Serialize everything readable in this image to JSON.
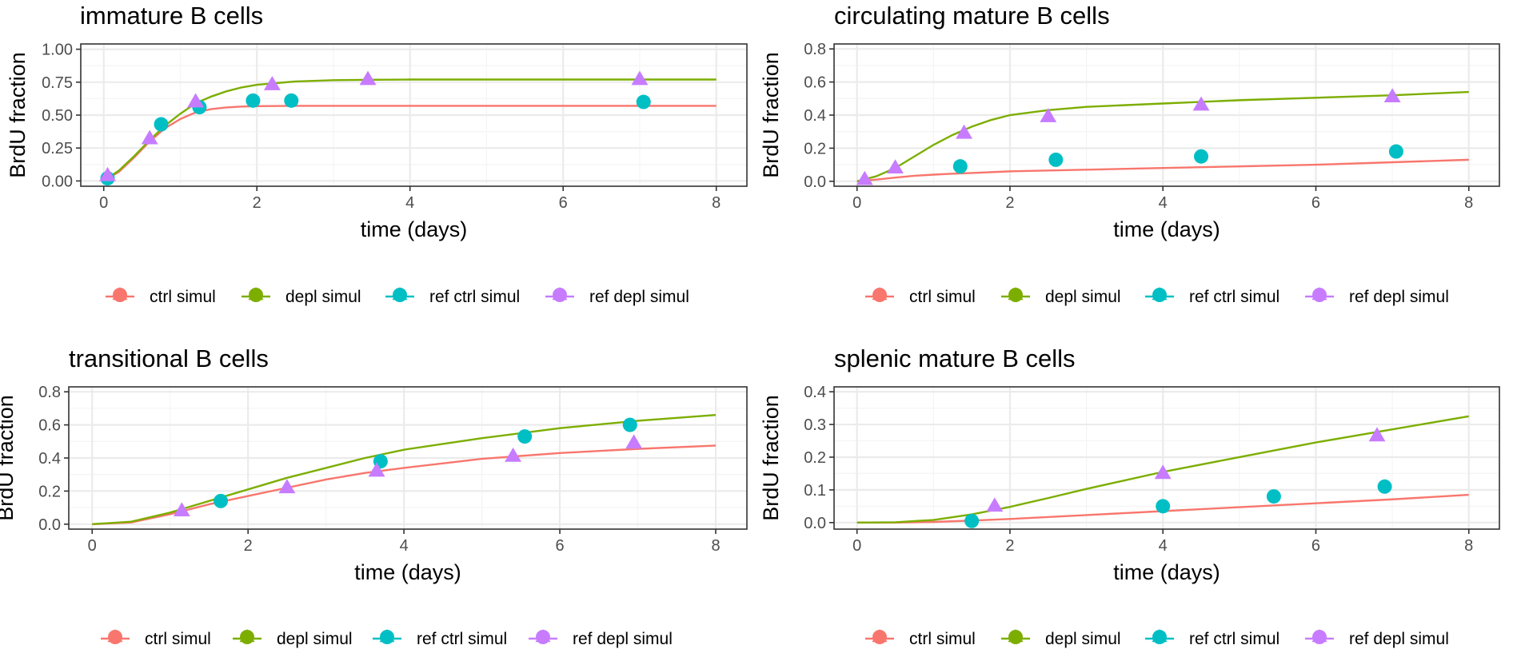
{
  "colors": {
    "ctrl_simul": "#F8766D",
    "depl_simul": "#7CAE00",
    "ref_ctrl_simul": "#00BFC4",
    "ref_depl_simul": "#C77CFF",
    "panel_border": "#333333",
    "grid_major": "#ebebeb",
    "grid_minor": "#f5f5f5",
    "tick_label": "#4d4d4d"
  },
  "chart_data": [
    {
      "type": "line",
      "title": "immature B cells",
      "xlabel": "time (days)",
      "ylabel": "BrdU fraction",
      "xlim": [
        -0.3,
        8.4
      ],
      "ylim": [
        -0.04,
        1.04
      ],
      "xticks": [
        0,
        2,
        4,
        6,
        8
      ],
      "xtick_labels": [
        "0",
        "2",
        "4",
        "6",
        "8"
      ],
      "yticks": [
        0,
        0.25,
        0.5,
        0.75,
        1.0
      ],
      "ytick_labels": [
        "0.00",
        "0.25",
        "0.50",
        "0.75",
        "1.00"
      ],
      "grid": true,
      "legend_position": "bottom",
      "series": [
        {
          "name": "ctrl simul",
          "kind": "line",
          "x": [
            0,
            0.2,
            0.4,
            0.6,
            0.8,
            1.0,
            1.2,
            1.4,
            1.6,
            1.8,
            2.0,
            2.5,
            3,
            4,
            5,
            6,
            7,
            8
          ],
          "y": [
            0,
            0.07,
            0.18,
            0.3,
            0.4,
            0.47,
            0.52,
            0.545,
            0.558,
            0.565,
            0.568,
            0.57,
            0.57,
            0.57,
            0.57,
            0.57,
            0.57,
            0.57
          ]
        },
        {
          "name": "depl simul",
          "kind": "line",
          "x": [
            0,
            0.2,
            0.4,
            0.6,
            0.8,
            1.0,
            1.2,
            1.4,
            1.6,
            1.8,
            2.0,
            2.5,
            3,
            3.5,
            4,
            5,
            6,
            7,
            8
          ],
          "y": [
            0,
            0.08,
            0.19,
            0.31,
            0.42,
            0.51,
            0.59,
            0.64,
            0.68,
            0.71,
            0.73,
            0.755,
            0.765,
            0.768,
            0.77,
            0.77,
            0.77,
            0.77,
            0.77
          ]
        },
        {
          "name": "ref ctrl simul",
          "kind": "points",
          "marker": "circle",
          "x": [
            0.05,
            0.75,
            1.25,
            1.95,
            2.45,
            7.05
          ],
          "y": [
            0.02,
            0.43,
            0.56,
            0.61,
            0.61,
            0.6
          ]
        },
        {
          "name": "ref depl simul",
          "kind": "points",
          "marker": "triangle",
          "x": [
            0.05,
            0.6,
            1.2,
            2.2,
            3.45,
            7.0
          ],
          "y": [
            0.04,
            0.32,
            0.6,
            0.73,
            0.77,
            0.77
          ]
        }
      ]
    },
    {
      "type": "line",
      "title": "circulating mature B cells",
      "xlabel": "time (days)",
      "ylabel": "BrdU fraction",
      "xlim": [
        -0.3,
        8.4
      ],
      "ylim": [
        -0.03,
        0.83
      ],
      "xticks": [
        0,
        2,
        4,
        6,
        8
      ],
      "xtick_labels": [
        "0",
        "2",
        "4",
        "6",
        "8"
      ],
      "yticks": [
        0,
        0.2,
        0.4,
        0.6,
        0.8
      ],
      "ytick_labels": [
        "0.0",
        "0.2",
        "0.4",
        "0.6",
        "0.8"
      ],
      "grid": true,
      "legend_position": "bottom",
      "series": [
        {
          "name": "ctrl simul",
          "kind": "line",
          "x": [
            0,
            0.25,
            0.5,
            0.75,
            1.0,
            1.25,
            1.5,
            2,
            3,
            4,
            5,
            6,
            7,
            8
          ],
          "y": [
            0,
            0.01,
            0.022,
            0.033,
            0.04,
            0.046,
            0.05,
            0.06,
            0.07,
            0.08,
            0.09,
            0.1,
            0.115,
            0.13
          ]
        },
        {
          "name": "depl simul",
          "kind": "line",
          "x": [
            0,
            0.25,
            0.5,
            0.75,
            1.0,
            1.25,
            1.5,
            1.75,
            2.0,
            2.5,
            3,
            4,
            5,
            6,
            7,
            8
          ],
          "y": [
            0,
            0.03,
            0.08,
            0.15,
            0.22,
            0.28,
            0.33,
            0.37,
            0.4,
            0.43,
            0.45,
            0.47,
            0.49,
            0.505,
            0.52,
            0.54
          ]
        },
        {
          "name": "ref ctrl simul",
          "kind": "points",
          "marker": "circle",
          "x": [
            1.35,
            2.6,
            4.5,
            7.05
          ],
          "y": [
            0.09,
            0.13,
            0.15,
            0.18
          ]
        },
        {
          "name": "ref depl simul",
          "kind": "points",
          "marker": "triangle",
          "x": [
            0.1,
            0.5,
            1.4,
            2.5,
            4.5,
            7.0
          ],
          "y": [
            0.01,
            0.08,
            0.29,
            0.39,
            0.46,
            0.51
          ]
        }
      ]
    },
    {
      "type": "line",
      "title": "transitional B cells",
      "xlabel": "time (days)",
      "ylabel": "BrdU fraction",
      "xlim": [
        -0.3,
        8.4
      ],
      "ylim": [
        -0.03,
        0.83
      ],
      "xticks": [
        0,
        2,
        4,
        6,
        8
      ],
      "xtick_labels": [
        "0",
        "2",
        "4",
        "6",
        "8"
      ],
      "yticks": [
        0,
        0.2,
        0.4,
        0.6,
        0.8
      ],
      "ytick_labels": [
        "0.0",
        "0.2",
        "0.4",
        "0.6",
        "0.8"
      ],
      "grid": true,
      "legend_position": "bottom",
      "series": [
        {
          "name": "ctrl simul",
          "kind": "line",
          "x": [
            0,
            0.5,
            1,
            1.5,
            2,
            2.5,
            3,
            3.5,
            4,
            5,
            6,
            7,
            8
          ],
          "y": [
            0,
            0.01,
            0.06,
            0.12,
            0.17,
            0.22,
            0.27,
            0.31,
            0.34,
            0.395,
            0.43,
            0.455,
            0.475
          ]
        },
        {
          "name": "depl simul",
          "kind": "line",
          "x": [
            0,
            0.5,
            1,
            1.5,
            2,
            2.5,
            3,
            3.5,
            4,
            5,
            6,
            7,
            8
          ],
          "y": [
            0,
            0.015,
            0.07,
            0.14,
            0.21,
            0.28,
            0.34,
            0.4,
            0.45,
            0.52,
            0.58,
            0.625,
            0.66
          ]
        },
        {
          "name": "ref ctrl simul",
          "kind": "points",
          "marker": "circle",
          "x": [
            1.65,
            3.7,
            5.55,
            6.9
          ],
          "y": [
            0.14,
            0.38,
            0.53,
            0.6
          ]
        },
        {
          "name": "ref depl simul",
          "kind": "points",
          "marker": "triangle",
          "x": [
            1.15,
            2.5,
            3.65,
            5.4,
            6.95
          ],
          "y": [
            0.08,
            0.22,
            0.32,
            0.41,
            0.49
          ]
        }
      ]
    },
    {
      "type": "line",
      "title": "splenic mature B cells",
      "xlabel": "time (days)",
      "ylabel": "BrdU fraction",
      "xlim": [
        -0.3,
        8.4
      ],
      "ylim": [
        -0.02,
        0.415
      ],
      "xticks": [
        0,
        2,
        4,
        6,
        8
      ],
      "xtick_labels": [
        "0",
        "2",
        "4",
        "6",
        "8"
      ],
      "yticks": [
        0,
        0.1,
        0.2,
        0.3,
        0.4
      ],
      "ytick_labels": [
        "0.0",
        "0.1",
        "0.2",
        "0.3",
        "0.4"
      ],
      "grid": true,
      "legend_position": "bottom",
      "series": [
        {
          "name": "ctrl simul",
          "kind": "line",
          "x": [
            0,
            0.5,
            1,
            1.5,
            2,
            3,
            4,
            5,
            6,
            7,
            8
          ],
          "y": [
            0,
            0,
            0.002,
            0.006,
            0.011,
            0.023,
            0.035,
            0.047,
            0.059,
            0.071,
            0.085
          ]
        },
        {
          "name": "depl simul",
          "kind": "line",
          "x": [
            0,
            0.5,
            1,
            1.5,
            2,
            2.5,
            3,
            4,
            5,
            6,
            7,
            8
          ],
          "y": [
            0,
            0.001,
            0.008,
            0.025,
            0.048,
            0.075,
            0.103,
            0.155,
            0.2,
            0.245,
            0.285,
            0.325
          ]
        },
        {
          "name": "ref ctrl simul",
          "kind": "points",
          "marker": "circle",
          "x": [
            1.5,
            4.0,
            5.45,
            6.9
          ],
          "y": [
            0.005,
            0.05,
            0.08,
            0.11
          ]
        },
        {
          "name": "ref depl simul",
          "kind": "points",
          "marker": "triangle",
          "x": [
            1.8,
            4.0,
            6.8
          ],
          "y": [
            0.05,
            0.15,
            0.265
          ]
        }
      ]
    }
  ]
}
